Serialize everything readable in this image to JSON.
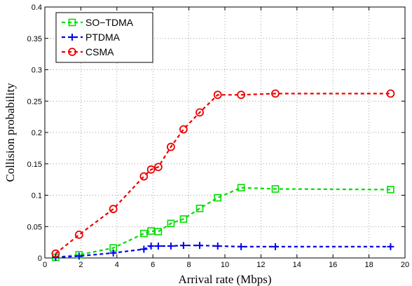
{
  "chart_data": {
    "type": "line",
    "xlabel": "Arrival rate (Mbps)",
    "ylabel": "Collision probability",
    "xlim": [
      0,
      20
    ],
    "ylim": [
      0,
      0.4
    ],
    "xticks": [
      0,
      2,
      4,
      6,
      8,
      10,
      12,
      14,
      16,
      18,
      20
    ],
    "yticks": [
      0,
      0.05,
      0.1,
      0.15,
      0.2,
      0.25,
      0.3,
      0.35,
      0.4
    ],
    "grid": true,
    "legend_position": "top-left",
    "series": [
      {
        "name": "SO−TDMA",
        "color": "#00dd00",
        "marker": "square",
        "x": [
          0.6,
          1.9,
          3.8,
          5.5,
          5.9,
          6.3,
          7.0,
          7.7,
          8.6,
          9.6,
          10.9,
          12.8,
          19.2
        ],
        "y": [
          0.001,
          0.005,
          0.016,
          0.039,
          0.043,
          0.042,
          0.055,
          0.062,
          0.079,
          0.096,
          0.112,
          0.11,
          0.109
        ]
      },
      {
        "name": "PTDMA",
        "color": "#0000ee",
        "marker": "plus",
        "x": [
          0.6,
          1.9,
          3.8,
          5.5,
          5.9,
          6.3,
          7.0,
          7.7,
          8.6,
          9.6,
          10.9,
          12.8,
          19.2
        ],
        "y": [
          0.001,
          0.003,
          0.008,
          0.014,
          0.019,
          0.019,
          0.019,
          0.02,
          0.02,
          0.019,
          0.018,
          0.018,
          0.018
        ]
      },
      {
        "name": "CSMA",
        "color": "#ee0000",
        "marker": "circle",
        "x": [
          0.6,
          1.9,
          3.8,
          5.5,
          5.9,
          6.3,
          7.0,
          7.7,
          8.6,
          9.6,
          10.9,
          12.8,
          19.2
        ],
        "y": [
          0.007,
          0.037,
          0.078,
          0.13,
          0.141,
          0.145,
          0.177,
          0.205,
          0.232,
          0.26,
          0.26,
          0.262,
          0.262
        ]
      }
    ]
  }
}
